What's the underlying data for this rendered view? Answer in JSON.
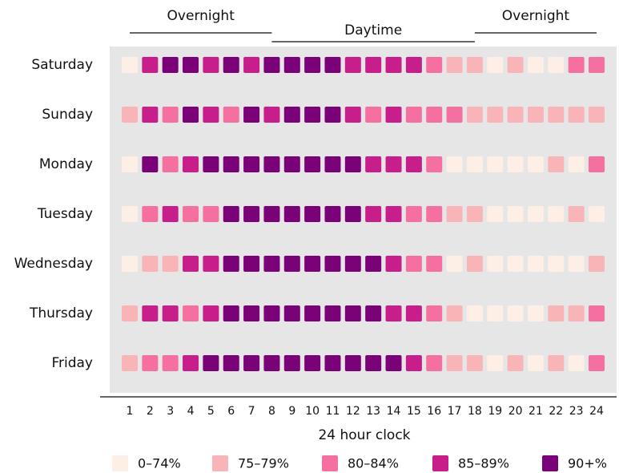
{
  "chart_data": {
    "type": "heatmap",
    "x_label": "24 hour clock",
    "x": [
      1,
      2,
      3,
      4,
      5,
      6,
      7,
      8,
      9,
      10,
      11,
      12,
      13,
      14,
      15,
      16,
      17,
      18,
      19,
      20,
      21,
      22,
      23,
      24
    ],
    "legend": [
      {
        "label": "0–74%",
        "color": "#fdeee6"
      },
      {
        "label": "75–79%",
        "color": "#f9b4b8"
      },
      {
        "label": "80–84%",
        "color": "#f570a0"
      },
      {
        "label": "85–89%",
        "color": "#c81e8c"
      },
      {
        "label": "90+%",
        "color": "#7a0177"
      }
    ],
    "periods": [
      {
        "label": "Overnight",
        "from": 1,
        "to": 8
      },
      {
        "label": "Daytime",
        "from": 8,
        "to": 18
      },
      {
        "label": "Overnight",
        "from": 18,
        "to": 24
      }
    ],
    "series": [
      {
        "name": "Saturday",
        "values": [
          0,
          3,
          4,
          4,
          3,
          4,
          3,
          4,
          4,
          4,
          4,
          3,
          3,
          3,
          3,
          2,
          1,
          1,
          0,
          1,
          0,
          0,
          2,
          2
        ]
      },
      {
        "name": "Sunday",
        "values": [
          1,
          3,
          2,
          4,
          3,
          2,
          4,
          3,
          4,
          4,
          4,
          3,
          2,
          3,
          2,
          2,
          2,
          1,
          1,
          1,
          1,
          1,
          1,
          1
        ]
      },
      {
        "name": "Monday",
        "values": [
          0,
          4,
          2,
          3,
          4,
          4,
          4,
          4,
          4,
          4,
          4,
          4,
          3,
          3,
          3,
          2,
          0,
          0,
          0,
          0,
          0,
          1,
          0,
          2
        ]
      },
      {
        "name": "Tuesday",
        "values": [
          0,
          2,
          3,
          2,
          2,
          4,
          4,
          4,
          4,
          4,
          4,
          4,
          3,
          3,
          2,
          2,
          1,
          1,
          0,
          0,
          0,
          0,
          1,
          0
        ]
      },
      {
        "name": "Wednesday",
        "values": [
          0,
          1,
          1,
          3,
          3,
          4,
          4,
          4,
          4,
          4,
          4,
          4,
          4,
          3,
          2,
          2,
          0,
          1,
          0,
          0,
          0,
          0,
          0,
          1
        ]
      },
      {
        "name": "Thursday",
        "values": [
          1,
          3,
          3,
          2,
          3,
          4,
          4,
          4,
          4,
          4,
          4,
          4,
          4,
          3,
          3,
          2,
          1,
          0,
          0,
          0,
          0,
          1,
          1,
          2
        ]
      },
      {
        "name": "Friday",
        "values": [
          1,
          2,
          2,
          3,
          4,
          4,
          4,
          4,
          4,
          4,
          4,
          4,
          4,
          4,
          3,
          2,
          1,
          1,
          0,
          1,
          0,
          1,
          0,
          2
        ]
      }
    ]
  }
}
